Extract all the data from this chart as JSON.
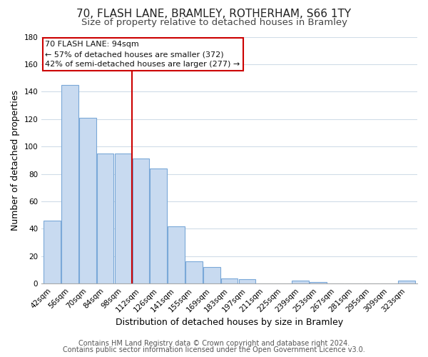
{
  "title": "70, FLASH LANE, BRAMLEY, ROTHERHAM, S66 1TY",
  "subtitle": "Size of property relative to detached houses in Bramley",
  "xlabel": "Distribution of detached houses by size in Bramley",
  "ylabel": "Number of detached properties",
  "bar_labels": [
    "42sqm",
    "56sqm",
    "70sqm",
    "84sqm",
    "98sqm",
    "112sqm",
    "126sqm",
    "141sqm",
    "155sqm",
    "169sqm",
    "183sqm",
    "197sqm",
    "211sqm",
    "225sqm",
    "239sqm",
    "253sqm",
    "267sqm",
    "281sqm",
    "295sqm",
    "309sqm",
    "323sqm"
  ],
  "bar_values": [
    46,
    145,
    121,
    95,
    95,
    91,
    84,
    42,
    16,
    12,
    4,
    3,
    0,
    0,
    2,
    1,
    0,
    0,
    0,
    0,
    2
  ],
  "bar_color": "#c8daf0",
  "bar_edge_color": "#7aa8d8",
  "ylim": [
    0,
    180
  ],
  "yticks": [
    0,
    20,
    40,
    60,
    80,
    100,
    120,
    140,
    160,
    180
  ],
  "vline_x": 4.5,
  "vline_color": "#cc0000",
  "annotation_line1": "70 FLASH LANE: 94sqm",
  "annotation_line2": "← 57% of detached houses are smaller (372)",
  "annotation_line3": "42% of semi-detached houses are larger (277) →",
  "footer_line1": "Contains HM Land Registry data © Crown copyright and database right 2024.",
  "footer_line2": "Contains public sector information licensed under the Open Government Licence v3.0.",
  "background_color": "#ffffff",
  "grid_color": "#d0dce8",
  "title_fontsize": 11,
  "subtitle_fontsize": 9.5,
  "label_fontsize": 9,
  "tick_fontsize": 7.5,
  "footer_fontsize": 7
}
